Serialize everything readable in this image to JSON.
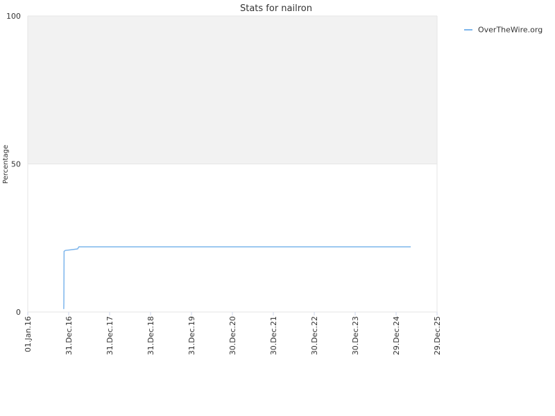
{
  "chart_data": {
    "type": "line",
    "title": "Stats for nailron",
    "y_label": "Percentage",
    "x": [
      "2016-11-17",
      "2016-11-18",
      "2016-11-20",
      "2016-12-01",
      "2017-01-15",
      "2017-03-20",
      "2017-04-01",
      "2025-05-08"
    ],
    "series": [
      {
        "name": "OverTheWire.org",
        "color": "#7cb5ec",
        "values": [
          1,
          3,
          20.5,
          20.8,
          21.0,
          21.3,
          22,
          22
        ]
      }
    ],
    "xlim": [
      "2016-01-01",
      "2025-12-29"
    ],
    "xticks": [
      {
        "value": "2016-01-01",
        "label": "01.Jan.16"
      },
      {
        "value": "2016-12-31",
        "label": "31.Dec.16"
      },
      {
        "value": "2017-12-31",
        "label": "31.Dec.17"
      },
      {
        "value": "2018-12-31",
        "label": "31.Dec.18"
      },
      {
        "value": "2019-12-31",
        "label": "31.Dec.19"
      },
      {
        "value": "2020-12-30",
        "label": "30.Dec.20"
      },
      {
        "value": "2021-12-30",
        "label": "30.Dec.21"
      },
      {
        "value": "2022-12-30",
        "label": "30.Dec.22"
      },
      {
        "value": "2023-12-30",
        "label": "30.Dec.23"
      },
      {
        "value": "2024-12-29",
        "label": "29.Dec.24"
      },
      {
        "value": "2025-12-29",
        "label": "29.Dec.25"
      }
    ],
    "ylim": [
      0,
      100
    ],
    "yticks": [
      0,
      50,
      100
    ],
    "plot_bands": [
      {
        "from": 50,
        "to": 100,
        "color": "#f2f2f2"
      }
    ],
    "legend": "top-right"
  }
}
